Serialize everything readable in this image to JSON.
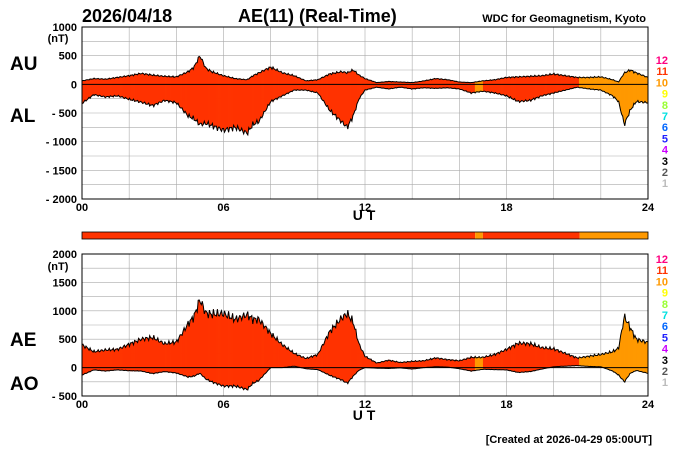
{
  "header": {
    "date": "2026/04/18",
    "title": "AE(11) (Real-Time)",
    "organization": "WDC for Geomagnetism, Kyoto"
  },
  "footer": {
    "created": "[Created at 2026-04-29 05:00UT]"
  },
  "legend_levels": [
    "12",
    "11",
    "10",
    "9",
    "8",
    "7",
    "6",
    "5",
    "4",
    "3",
    "2",
    "1"
  ],
  "colors": {
    "level_12": "#ff0080",
    "level_11": "#ff3300",
    "level_10": "#ff9900",
    "level_9": "#ffff00",
    "level_8": "#99ff33",
    "level_7": "#00e0e0",
    "level_6": "#0066ff",
    "level_5": "#2222ff",
    "level_4": "#cc00ff",
    "level_3": "#000000",
    "level_2": "#555555",
    "level_1": "#bbbbbb",
    "gridline": "#aaaaaa",
    "outline": "#000000"
  },
  "chart_data": [
    {
      "type": "area",
      "id": "au-al",
      "series_labels": [
        "AU",
        "AL"
      ],
      "unit_label": "(nT)",
      "ylim": [
        -2000,
        1000
      ],
      "ytick_labels": [
        "1000",
        "500",
        "0",
        "- 500",
        "- 1000",
        "- 1500",
        "- 2000"
      ],
      "ytick_values": [
        1000,
        500,
        0,
        -500,
        -1000,
        -1500,
        -2000
      ],
      "xlim": [
        0,
        24
      ],
      "xtick_labels": [
        "00",
        "06",
        "12",
        "18",
        "24"
      ],
      "xtick_values": [
        0,
        6,
        12,
        18,
        24
      ],
      "xlabel": "U T",
      "hours": [
        0,
        0.5,
        1,
        1.5,
        2,
        2.5,
        3,
        3.5,
        4,
        4.5,
        4.75,
        5,
        5.25,
        5.5,
        6,
        6.5,
        7,
        7.25,
        7.5,
        8,
        8.25,
        8.5,
        9,
        9.5,
        10,
        10.5,
        11,
        11.25,
        11.5,
        11.75,
        12,
        12.5,
        13,
        13.5,
        14,
        14.5,
        15,
        15.5,
        16,
        16.5,
        17,
        17.5,
        18,
        18.5,
        19,
        19.5,
        20,
        20.5,
        21,
        21.5,
        22,
        22.5,
        22.75,
        23,
        23.25,
        23.5,
        24
      ],
      "au": [
        60,
        100,
        90,
        120,
        150,
        190,
        160,
        140,
        130,
        220,
        300,
        500,
        280,
        220,
        150,
        100,
        80,
        150,
        200,
        300,
        250,
        200,
        150,
        60,
        80,
        180,
        220,
        200,
        250,
        160,
        100,
        30,
        50,
        40,
        30,
        60,
        100,
        80,
        40,
        30,
        60,
        80,
        120,
        130,
        140,
        150,
        180,
        150,
        120,
        120,
        130,
        80,
        40,
        200,
        250,
        200,
        120
      ],
      "al": [
        -330,
        -180,
        -220,
        -200,
        -260,
        -310,
        -370,
        -280,
        -320,
        -550,
        -600,
        -700,
        -680,
        -720,
        -800,
        -750,
        -850,
        -700,
        -650,
        -300,
        -250,
        -200,
        -100,
        -100,
        -150,
        -450,
        -650,
        -750,
        -550,
        -250,
        -100,
        -50,
        -80,
        -50,
        -80,
        -60,
        -70,
        -60,
        -80,
        -150,
        -120,
        -150,
        -200,
        -300,
        -280,
        -200,
        -150,
        -100,
        -50,
        -80,
        -100,
        -200,
        -300,
        -700,
        -450,
        -300,
        -320
      ]
    },
    {
      "type": "area",
      "id": "ae-ao",
      "series_labels": [
        "AE",
        "AO"
      ],
      "unit_label": "(nT)",
      "ylim": [
        -500,
        2000
      ],
      "ytick_labels": [
        "2000",
        "1500",
        "1000",
        "500",
        "0",
        "- 500"
      ],
      "ytick_values": [
        2000,
        1500,
        1000,
        500,
        0,
        -500
      ],
      "xlim": [
        0,
        24
      ],
      "xtick_labels": [
        "00",
        "06",
        "12",
        "18",
        "24"
      ],
      "xtick_values": [
        0,
        6,
        12,
        18,
        24
      ],
      "xlabel": "U T",
      "hours": [
        0,
        0.5,
        1,
        1.5,
        2,
        2.5,
        3,
        3.5,
        4,
        4.5,
        4.75,
        5,
        5.25,
        5.5,
        6,
        6.5,
        7,
        7.25,
        7.5,
        8,
        8.25,
        8.5,
        9,
        9.5,
        10,
        10.5,
        11,
        11.25,
        11.5,
        11.75,
        12,
        12.5,
        13,
        13.5,
        14,
        14.5,
        15,
        15.5,
        16,
        16.5,
        17,
        17.5,
        18,
        18.5,
        19,
        19.5,
        20,
        20.5,
        21,
        21.5,
        22,
        22.5,
        22.75,
        23,
        23.25,
        23.5,
        24
      ],
      "ae": [
        400,
        280,
        310,
        320,
        410,
        500,
        530,
        420,
        450,
        770,
        900,
        1200,
        960,
        940,
        950,
        850,
        930,
        850,
        850,
        600,
        500,
        400,
        250,
        160,
        230,
        630,
        870,
        950,
        800,
        410,
        200,
        80,
        130,
        90,
        110,
        120,
        170,
        140,
        120,
        180,
        180,
        230,
        320,
        430,
        420,
        350,
        330,
        250,
        170,
        200,
        230,
        280,
        340,
        900,
        700,
        500,
        440
      ],
      "ao": [
        -130,
        -40,
        -60,
        -40,
        -55,
        -60,
        -105,
        -70,
        -95,
        -165,
        -150,
        -100,
        -200,
        -250,
        -325,
        -325,
        -385,
        -275,
        -225,
        0,
        0,
        0,
        25,
        -20,
        -35,
        -135,
        -215,
        -275,
        -150,
        -45,
        0,
        -10,
        -15,
        -5,
        -25,
        0,
        15,
        10,
        -20,
        -60,
        -30,
        -35,
        -40,
        -85,
        -70,
        -25,
        15,
        25,
        35,
        20,
        15,
        -60,
        -130,
        -250,
        -100,
        -50,
        -100
      ]
    },
    {
      "type": "bar",
      "id": "station-bar",
      "description_levels": "number of stations contributing, color-coded",
      "segments": [
        {
          "start": 0,
          "end": 16.67,
          "level": "11"
        },
        {
          "start": 16.67,
          "end": 17.0,
          "level": "10"
        },
        {
          "start": 17.0,
          "end": 21.1,
          "level": "11"
        },
        {
          "start": 21.1,
          "end": 24,
          "level": "10"
        }
      ]
    }
  ]
}
